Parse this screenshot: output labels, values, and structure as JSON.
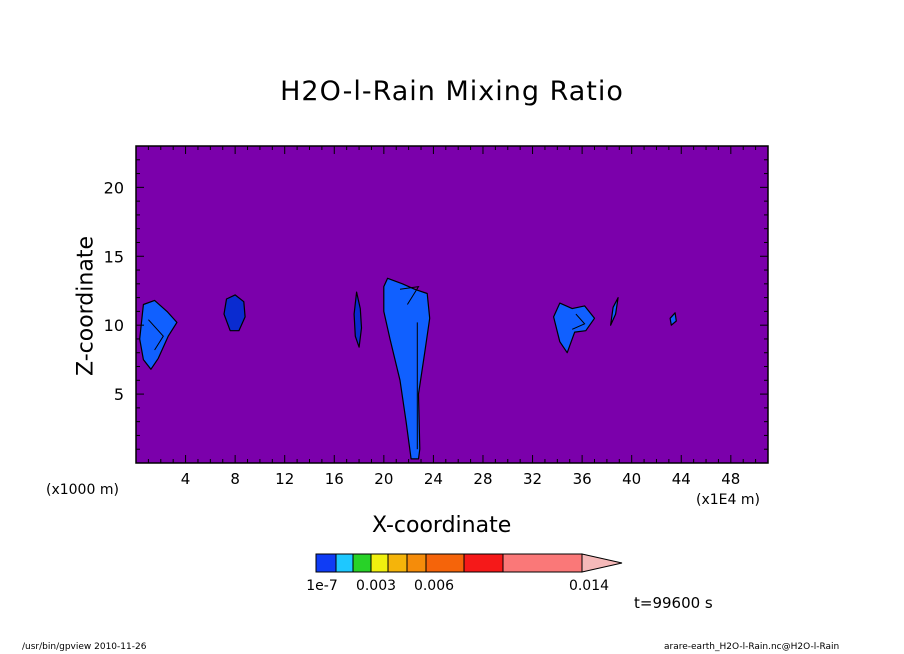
{
  "chart_data": {
    "type": "heatmap",
    "title": "H2O-l-Rain Mixing Ratio",
    "xlabel": "X-coordinate",
    "ylabel": "Z-coordinate",
    "x_unit_label": "(x1000 m)",
    "x_unit_label2": "(x1E4 m)",
    "xlim": [
      0,
      51
    ],
    "ylim": [
      0,
      23
    ],
    "x_ticks": [
      "4",
      "8",
      "12",
      "16",
      "20",
      "24",
      "28",
      "32",
      "36",
      "40",
      "44",
      "48"
    ],
    "y_ticks": [
      "5",
      "10",
      "15",
      "20"
    ],
    "background_color": "#7b00ab",
    "colorbar": {
      "colors": [
        "#0f3cf5",
        "#1ec8ff",
        "#28d228",
        "#f0f00f",
        "#f5b40a",
        "#f58c0a",
        "#f5640a",
        "#f51919",
        "#fa7878",
        "#f5b9b9"
      ],
      "labels": [
        "1e-7",
        "0.003",
        "0.006",
        "0.014"
      ]
    },
    "regions": [
      {
        "color": "#1060ff",
        "points": [
          [
            0.3,
            9
          ],
          [
            0.6,
            11.5
          ],
          [
            1.5,
            11.8
          ],
          [
            2.5,
            11
          ],
          [
            3.3,
            10.2
          ],
          [
            2.6,
            9.2
          ],
          [
            1.8,
            7.6
          ],
          [
            1.2,
            6.8
          ],
          [
            0.6,
            7.5
          ]
        ]
      },
      {
        "color": "#0a2bd0",
        "points": [
          [
            7.1,
            10.8
          ],
          [
            7.3,
            11.9
          ],
          [
            8,
            12.2
          ],
          [
            8.7,
            11.7
          ],
          [
            8.8,
            10.6
          ],
          [
            8.3,
            9.6
          ],
          [
            7.6,
            9.6
          ]
        ]
      },
      {
        "color": "#0a2bd0",
        "points": [
          [
            17.6,
            10.8
          ],
          [
            17.8,
            12.4
          ],
          [
            18.1,
            11.2
          ],
          [
            18.2,
            9.8
          ],
          [
            18,
            8.4
          ],
          [
            17.7,
            9.2
          ]
        ]
      },
      {
        "color": "#1060ff",
        "points": [
          [
            20,
            12.8
          ],
          [
            20.3,
            13.4
          ],
          [
            21.5,
            13
          ],
          [
            22.5,
            12.6
          ],
          [
            23.5,
            12.3
          ],
          [
            23.7,
            10.5
          ],
          [
            23.3,
            8
          ],
          [
            22.8,
            5
          ],
          [
            22.9,
            1
          ],
          [
            22.8,
            0.3
          ],
          [
            22.2,
            0.3
          ],
          [
            21.8,
            3
          ],
          [
            21.3,
            6
          ],
          [
            20.5,
            9
          ],
          [
            20,
            11
          ]
        ]
      },
      {
        "color": "#1060ff",
        "points": [
          [
            33.7,
            10.6
          ],
          [
            34.2,
            11.6
          ],
          [
            35.2,
            11.2
          ],
          [
            36.2,
            11.4
          ],
          [
            37,
            10.5
          ],
          [
            36.3,
            9.6
          ],
          [
            35.4,
            9.5
          ],
          [
            34.8,
            8
          ],
          [
            34.2,
            8.8
          ]
        ]
      },
      {
        "color": "#1060ff",
        "points": [
          [
            38.3,
            10
          ],
          [
            38.5,
            11.3
          ],
          [
            38.9,
            12
          ],
          [
            38.7,
            10.8
          ]
        ]
      },
      {
        "color": "#1060ff",
        "points": [
          [
            43.1,
            10.5
          ],
          [
            43.5,
            10.9
          ],
          [
            43.6,
            10.3
          ],
          [
            43.2,
            10
          ]
        ]
      }
    ],
    "contour_lines": [
      {
        "points": [
          [
            22.7,
            10.2
          ],
          [
            22.7,
            5.5
          ],
          [
            22.7,
            1
          ]
        ]
      },
      {
        "points": [
          [
            1,
            10.4
          ],
          [
            2.2,
            9.2
          ],
          [
            1.5,
            8.2
          ]
        ]
      },
      {
        "points": [
          [
            21.3,
            12.6
          ],
          [
            22.8,
            12.8
          ],
          [
            21.9,
            11.5
          ]
        ]
      },
      {
        "points": [
          [
            35.5,
            10.8
          ],
          [
            36.2,
            10.1
          ],
          [
            35.2,
            9.7
          ]
        ]
      }
    ],
    "time_label": "t=99600  s"
  },
  "footer": {
    "left": "/usr/bin/gpview  2010-11-26",
    "right": "arare-earth_H2O-l-Rain.nc@H2O-l-Rain"
  }
}
